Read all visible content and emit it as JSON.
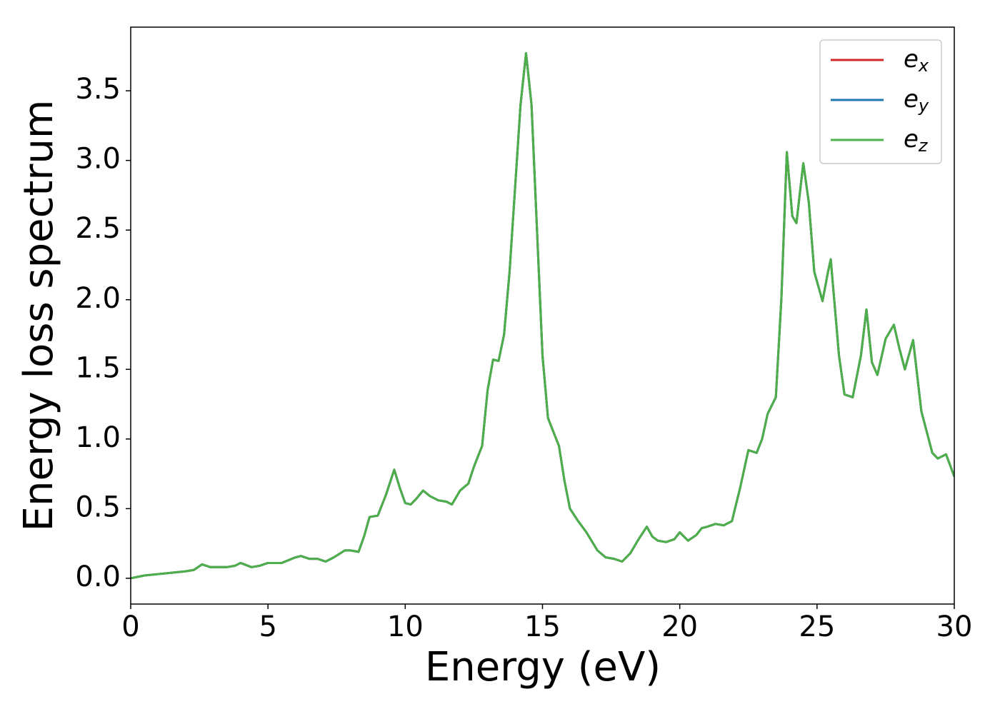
{
  "chart_data": {
    "type": "line",
    "xlabel": "Energy (eV)",
    "ylabel": "Energy loss spectrum",
    "x": [
      0,
      0.5,
      1,
      1.5,
      2,
      2.3,
      2.6,
      2.9,
      3.5,
      3.8,
      4.0,
      4.4,
      4.7,
      5.0,
      5.5,
      6.0,
      6.2,
      6.5,
      6.8,
      7.1,
      7.4,
      7.8,
      8.0,
      8.3,
      8.5,
      8.7,
      9.0,
      9.3,
      9.6,
      9.8,
      10.0,
      10.2,
      10.4,
      10.65,
      10.9,
      11.2,
      11.5,
      11.7,
      12.0,
      12.3,
      12.5,
      12.8,
      13.0,
      13.2,
      13.4,
      13.6,
      13.8,
      14.0,
      14.2,
      14.4,
      14.6,
      14.8,
      15.0,
      15.2,
      15.4,
      15.6,
      15.8,
      16.0,
      16.3,
      16.6,
      17.0,
      17.3,
      17.6,
      17.9,
      18.2,
      18.5,
      18.8,
      19.0,
      19.2,
      19.5,
      19.8,
      20.0,
      20.3,
      20.6,
      20.8,
      21.0,
      21.3,
      21.6,
      21.9,
      22.2,
      22.5,
      22.8,
      23.0,
      23.2,
      23.5,
      23.7,
      23.9,
      24.1,
      24.25,
      24.5,
      24.7,
      24.9,
      25.2,
      25.4,
      25.5,
      25.8,
      26.0,
      26.3,
      26.6,
      26.8,
      27.0,
      27.2,
      27.5,
      27.8,
      28.0,
      28.2,
      28.5,
      28.8,
      29.2,
      29.4,
      29.7,
      30.0
    ],
    "series": [
      {
        "name": "e_x",
        "color": "#d62728",
        "values": [
          0,
          0.02,
          0.03,
          0.04,
          0.05,
          0.06,
          0.1,
          0.08,
          0.08,
          0.09,
          0.11,
          0.08,
          0.09,
          0.11,
          0.11,
          0.15,
          0.16,
          0.14,
          0.14,
          0.12,
          0.15,
          0.2,
          0.2,
          0.19,
          0.3,
          0.44,
          0.45,
          0.6,
          0.78,
          0.65,
          0.54,
          0.53,
          0.57,
          0.63,
          0.59,
          0.56,
          0.55,
          0.53,
          0.63,
          0.68,
          0.8,
          0.95,
          1.35,
          1.57,
          1.56,
          1.75,
          2.2,
          2.8,
          3.4,
          3.77,
          3.4,
          2.5,
          1.6,
          1.15,
          1.05,
          0.95,
          0.7,
          0.5,
          0.41,
          0.33,
          0.2,
          0.15,
          0.14,
          0.12,
          0.18,
          0.28,
          0.37,
          0.3,
          0.27,
          0.26,
          0.28,
          0.33,
          0.27,
          0.31,
          0.36,
          0.37,
          0.39,
          0.38,
          0.41,
          0.65,
          0.92,
          0.9,
          1.0,
          1.18,
          1.3,
          2.0,
          3.06,
          2.6,
          2.55,
          2.98,
          2.7,
          2.2,
          1.99,
          2.2,
          2.29,
          1.6,
          1.32,
          1.3,
          1.6,
          1.93,
          1.55,
          1.46,
          1.72,
          1.82,
          1.65,
          1.5,
          1.71,
          1.2,
          0.9,
          0.86,
          0.89,
          0.73
        ]
      },
      {
        "name": "e_y",
        "color": "#1f77b4",
        "values": [
          0,
          0.02,
          0.03,
          0.04,
          0.05,
          0.06,
          0.1,
          0.08,
          0.08,
          0.09,
          0.11,
          0.08,
          0.09,
          0.11,
          0.11,
          0.15,
          0.16,
          0.14,
          0.14,
          0.12,
          0.15,
          0.2,
          0.2,
          0.19,
          0.3,
          0.44,
          0.45,
          0.6,
          0.78,
          0.65,
          0.54,
          0.53,
          0.57,
          0.63,
          0.59,
          0.56,
          0.55,
          0.53,
          0.63,
          0.68,
          0.8,
          0.95,
          1.35,
          1.57,
          1.56,
          1.75,
          2.2,
          2.8,
          3.4,
          3.77,
          3.4,
          2.5,
          1.6,
          1.15,
          1.05,
          0.95,
          0.7,
          0.5,
          0.41,
          0.33,
          0.2,
          0.15,
          0.14,
          0.12,
          0.18,
          0.28,
          0.37,
          0.3,
          0.27,
          0.26,
          0.28,
          0.33,
          0.27,
          0.31,
          0.36,
          0.37,
          0.39,
          0.38,
          0.41,
          0.65,
          0.92,
          0.9,
          1.0,
          1.18,
          1.3,
          2.0,
          3.06,
          2.6,
          2.55,
          2.98,
          2.7,
          2.2,
          1.99,
          2.2,
          2.29,
          1.6,
          1.32,
          1.3,
          1.6,
          1.93,
          1.55,
          1.46,
          1.72,
          1.82,
          1.65,
          1.5,
          1.71,
          1.2,
          0.9,
          0.86,
          0.89,
          0.73
        ]
      },
      {
        "name": "e_z",
        "color": "#4daf4a",
        "values": [
          0,
          0.02,
          0.03,
          0.04,
          0.05,
          0.06,
          0.1,
          0.08,
          0.08,
          0.09,
          0.11,
          0.08,
          0.09,
          0.11,
          0.11,
          0.15,
          0.16,
          0.14,
          0.14,
          0.12,
          0.15,
          0.2,
          0.2,
          0.19,
          0.3,
          0.44,
          0.45,
          0.6,
          0.78,
          0.65,
          0.54,
          0.53,
          0.57,
          0.63,
          0.59,
          0.56,
          0.55,
          0.53,
          0.63,
          0.68,
          0.8,
          0.95,
          1.35,
          1.57,
          1.56,
          1.75,
          2.2,
          2.8,
          3.4,
          3.77,
          3.4,
          2.5,
          1.6,
          1.15,
          1.05,
          0.95,
          0.7,
          0.5,
          0.41,
          0.33,
          0.2,
          0.15,
          0.14,
          0.12,
          0.18,
          0.28,
          0.37,
          0.3,
          0.27,
          0.26,
          0.28,
          0.33,
          0.27,
          0.31,
          0.36,
          0.37,
          0.39,
          0.38,
          0.41,
          0.65,
          0.92,
          0.9,
          1.0,
          1.18,
          1.3,
          2.0,
          3.06,
          2.6,
          2.55,
          2.98,
          2.7,
          2.2,
          1.99,
          2.2,
          2.29,
          1.6,
          1.32,
          1.3,
          1.6,
          1.93,
          1.55,
          1.46,
          1.72,
          1.82,
          1.65,
          1.5,
          1.71,
          1.2,
          0.9,
          0.86,
          0.89,
          0.73
        ]
      }
    ],
    "xlim": [
      0,
      30
    ],
    "xticks": [
      0,
      5,
      10,
      15,
      20,
      25,
      30
    ],
    "ylim": [
      -0.185,
      3.957
    ],
    "yticks": [
      {
        "value": 0,
        "label": "0.0"
      },
      0.5,
      {
        "value": 1,
        "label": "1.0"
      },
      1.5,
      {
        "value": 2,
        "label": "2.0"
      },
      2.5,
      {
        "value": 3,
        "label": "3.0"
      },
      3.5
    ],
    "grid": false,
    "legend": "upper right"
  }
}
